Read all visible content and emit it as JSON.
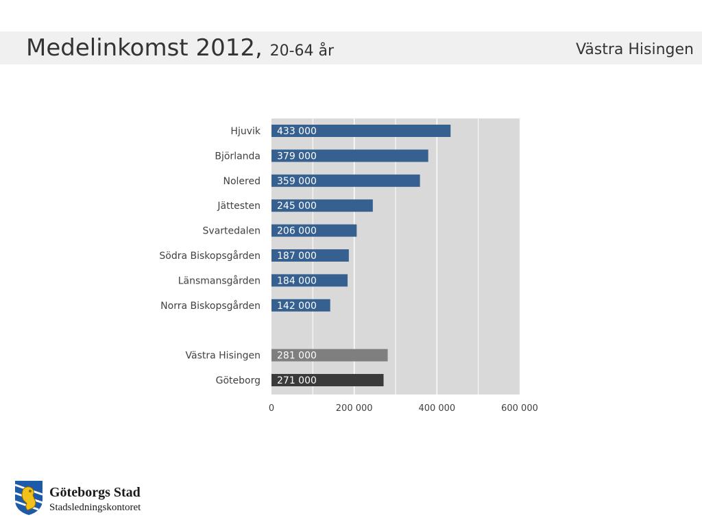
{
  "header": {
    "title": "Medelinkomst 2012,",
    "subtitle": "20-64 år",
    "district": "Västra Hisingen"
  },
  "logo": {
    "name": "Göteborgs Stad",
    "department": "Stadsledningskontoret",
    "icon": "goteborg-lion-crest-icon"
  },
  "chart_data": {
    "type": "bar",
    "orientation": "horizontal",
    "categories": [
      "Hjuvik",
      "Björlanda",
      "Nolered",
      "Jättesten",
      "Svartedalen",
      "Södra Biskopsgården",
      "Länsmansgården",
      "Norra Biskopsgården",
      "Västra Hisingen",
      "Göteborg"
    ],
    "values": [
      433000,
      379000,
      359000,
      245000,
      206000,
      187000,
      184000,
      142000,
      281000,
      271000
    ],
    "value_labels": [
      "433 000",
      "379 000",
      "359 000",
      "245 000",
      "206 000",
      "187 000",
      "184 000",
      "142 000",
      "281 000",
      "271 000"
    ],
    "group_gap_after_index": 7,
    "bar_colors": [
      "#36608f",
      "#36608f",
      "#36608f",
      "#36608f",
      "#36608f",
      "#36608f",
      "#36608f",
      "#36608f",
      "#7f7f7f",
      "#3a3a3a"
    ],
    "xlim": [
      0,
      600000
    ],
    "xticks": [
      0,
      200000,
      400000,
      600000
    ],
    "xtick_labels": [
      "0",
      "200 000",
      "400 000",
      "600 000"
    ],
    "plot_background": "#d9d9d9",
    "grid": true,
    "legend": "none",
    "title": "",
    "xlabel": "",
    "ylabel": ""
  }
}
